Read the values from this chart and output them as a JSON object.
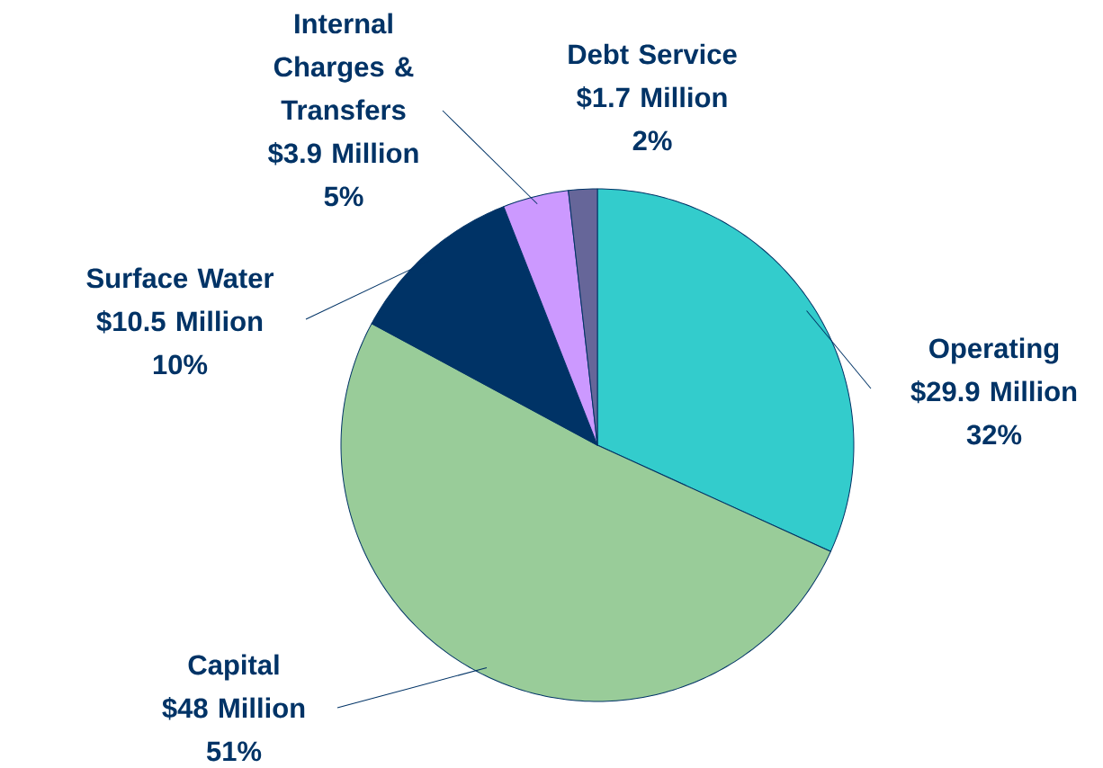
{
  "chart_data": {
    "type": "pie",
    "categories": [
      "Operating",
      "Capital",
      "Surface Water",
      "Internal Charges & Transfers",
      "Debt Service"
    ],
    "values": [
      29.9,
      48,
      10.5,
      3.9,
      1.7
    ],
    "colors": [
      "#33cccc",
      "#99cc99",
      "#003366",
      "#cc99ff",
      "#666699"
    ],
    "value_labels": [
      "$29.9 Million",
      "$48 Million",
      "$10.5 Million",
      "$3.9 Million",
      "$1.7 Million"
    ],
    "annotations": [
      "32%",
      "51%",
      "10%",
      "5%",
      "2%"
    ]
  }
}
